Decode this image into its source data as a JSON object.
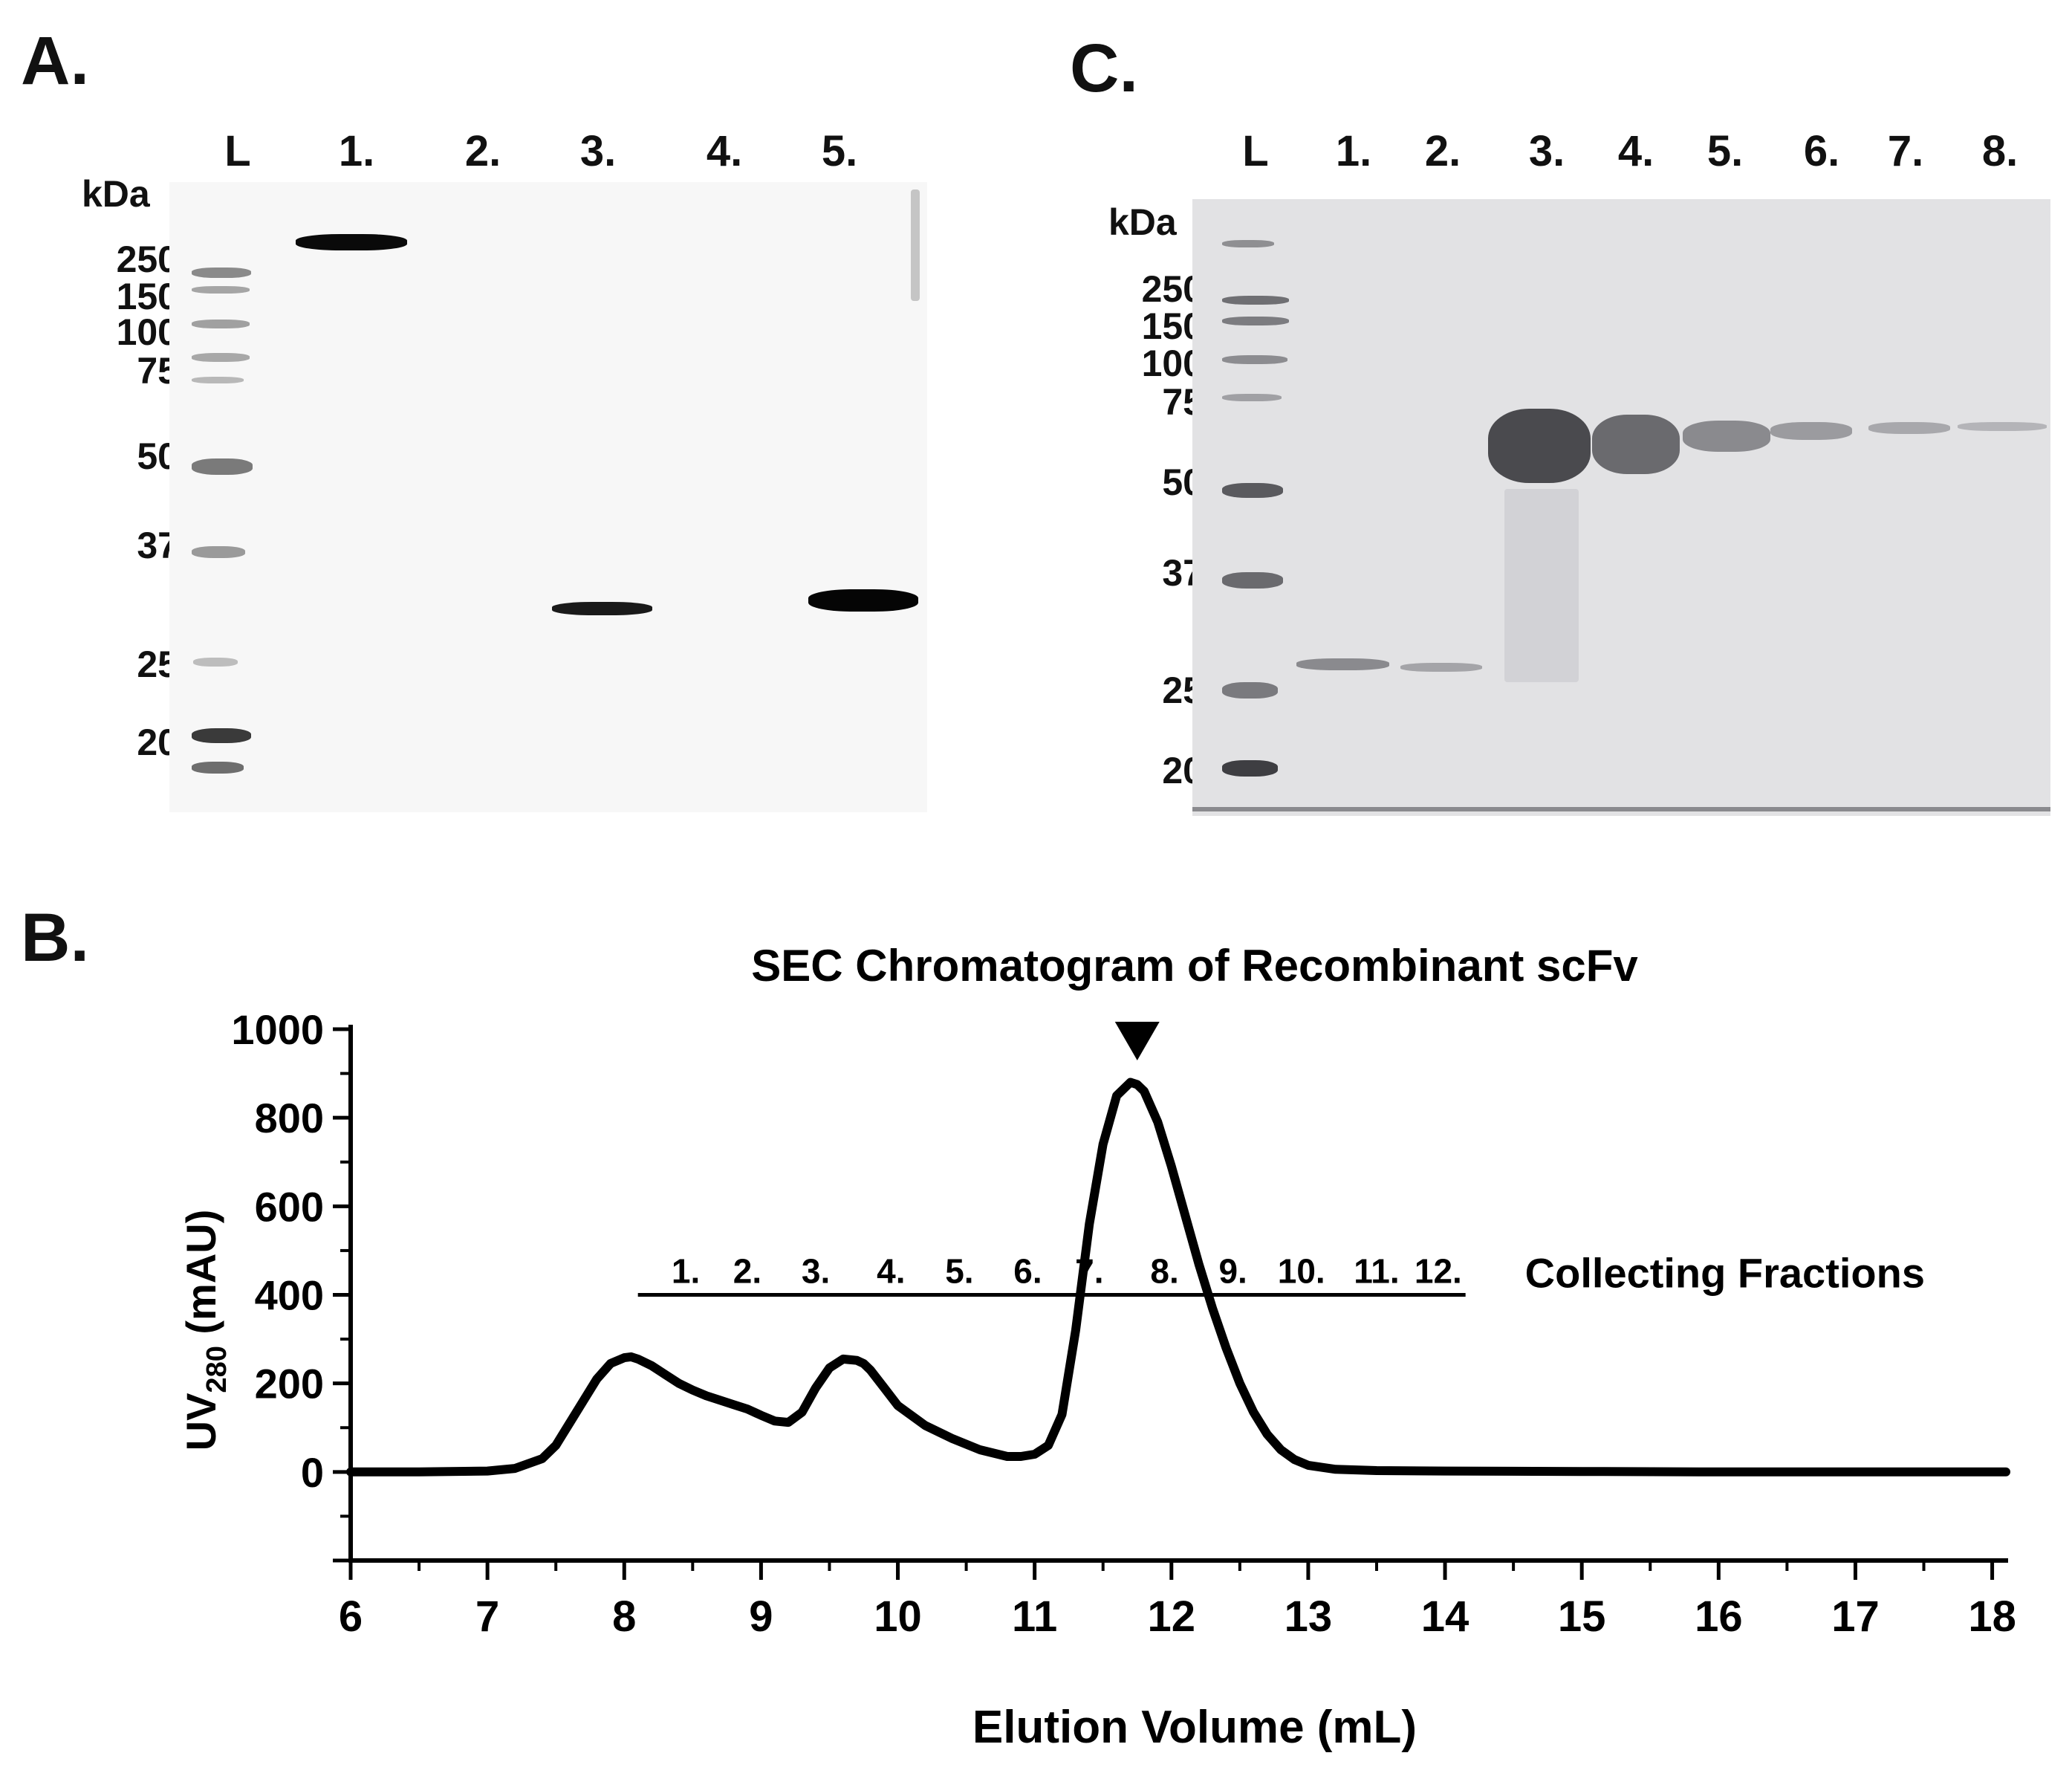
{
  "panelA": {
    "letter": "A.",
    "lanes": [
      "L",
      "1.",
      "2.",
      "3.",
      "4.",
      "5."
    ],
    "unit": "kDa",
    "markers": [
      "250",
      "150",
      "100",
      "75",
      "50",
      "37",
      "25",
      "20"
    ]
  },
  "panelC": {
    "letter": "C.",
    "lanes": [
      "L",
      "1.",
      "2.",
      "3.",
      "4.",
      "5.",
      "6.",
      "7.",
      "8."
    ],
    "unit": "kDa",
    "markers": [
      "250",
      "150",
      "100",
      "75",
      "50",
      "37",
      "25",
      "20"
    ]
  },
  "panelB": {
    "letter": "B.",
    "fractions_label": "Collecting Fractions"
  },
  "chart_data": {
    "type": "line",
    "title": "SEC Chromatogram of Recombinant scFv",
    "xlabel": "Elution Volume (mL)",
    "ylabel_main": "UV",
    "ylabel_sub": "280",
    "ylabel_unit": " (mAU)",
    "xlim": [
      6,
      18.1
    ],
    "ylim": [
      -200,
      1000
    ],
    "xticks": [
      "6",
      "7",
      "8",
      "9",
      "10",
      "11",
      "12",
      "13",
      "14",
      "15",
      "16",
      "17",
      "18"
    ],
    "yticks": [
      "1000",
      "800",
      "600",
      "400",
      "200",
      "0"
    ],
    "grid": false,
    "series": [
      {
        "x": [
          6.0,
          6.5,
          7.0,
          7.2,
          7.4,
          7.5,
          7.6,
          7.7,
          7.8,
          7.9,
          8.0,
          8.05,
          8.1,
          8.2,
          8.3,
          8.4,
          8.5,
          8.6,
          8.7,
          8.8,
          8.9,
          9.0,
          9.1,
          9.2,
          9.3,
          9.4,
          9.5,
          9.6,
          9.7,
          9.75,
          9.8,
          9.9,
          10.0,
          10.2,
          10.4,
          10.6,
          10.8,
          10.9,
          11.0,
          11.1,
          11.2,
          11.3,
          11.4,
          11.5,
          11.6,
          11.7,
          11.75,
          11.8,
          11.9,
          12.0,
          12.1,
          12.2,
          12.3,
          12.4,
          12.5,
          12.6,
          12.7,
          12.8,
          12.9,
          13.0,
          13.2,
          13.5,
          14.0,
          15.0,
          16.0,
          17.0,
          18.1
        ],
        "y": [
          0,
          0,
          2,
          8,
          30,
          60,
          110,
          160,
          210,
          245,
          258,
          260,
          255,
          240,
          220,
          200,
          185,
          172,
          162,
          152,
          142,
          128,
          115,
          112,
          135,
          190,
          235,
          255,
          252,
          245,
          230,
          190,
          150,
          105,
          75,
          50,
          35,
          35,
          40,
          60,
          130,
          320,
          560,
          740,
          850,
          880,
          875,
          860,
          790,
          690,
          580,
          470,
          370,
          280,
          200,
          135,
          85,
          50,
          28,
          15,
          6,
          3,
          2,
          1,
          0,
          0,
          0
        ]
      }
    ],
    "annotations": {
      "peak_marker_x": 11.75,
      "fractions_bar_y": 400,
      "fractions_bar_x": [
        8.1,
        14.15
      ],
      "fraction_labels": [
        "1.",
        "2.",
        "3.",
        "4.",
        "5.",
        "6.",
        "7.",
        "8.",
        "9.",
        "10.",
        "11.",
        "12."
      ],
      "fraction_label_x": [
        8.45,
        8.9,
        9.4,
        9.95,
        10.45,
        10.95,
        11.4,
        11.95,
        12.45,
        12.95,
        13.5,
        13.95
      ]
    }
  }
}
